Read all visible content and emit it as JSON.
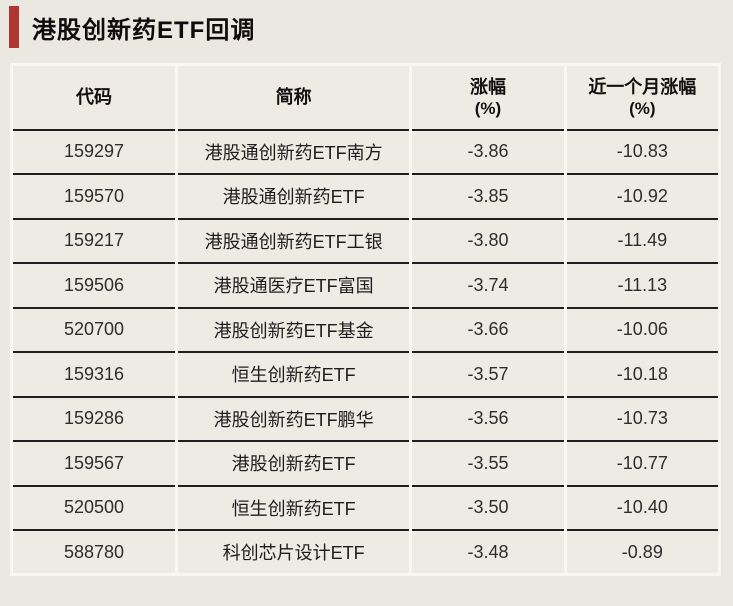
{
  "page": {
    "title": "港股创新药ETF回调",
    "accent_color": "#b23531",
    "background_color": "#ebe8e2"
  },
  "table": {
    "headers": [
      {
        "label": "代码",
        "sub": ""
      },
      {
        "label": "简称",
        "sub": ""
      },
      {
        "label": "涨幅",
        "sub": "(%)"
      },
      {
        "label": "近一个月涨幅",
        "sub": "(%)"
      }
    ],
    "rows": [
      [
        "159297",
        "港股通创新药ETF南方",
        "-3.86",
        "-10.83"
      ],
      [
        "159570",
        "港股通创新药ETF",
        "-3.85",
        "-10.92"
      ],
      [
        "159217",
        "港股通创新药ETF工银",
        "-3.80",
        "-11.49"
      ],
      [
        "159506",
        "港股通医疗ETF富国",
        "-3.74",
        "-11.13"
      ],
      [
        "520700",
        "港股创新药ETF基金",
        "-3.66",
        "-10.06"
      ],
      [
        "159316",
        "恒生创新药ETF",
        "-3.57",
        "-10.18"
      ],
      [
        "159286",
        "港股创新药ETF鹏华",
        "-3.56",
        "-10.73"
      ],
      [
        "159567",
        "港股创新药ETF",
        "-3.55",
        "-10.77"
      ],
      [
        "520500",
        "恒生创新药ETF",
        "-3.50",
        "-10.40"
      ],
      [
        "588780",
        "科创芯片设计ETF",
        "-3.48",
        "-0.89"
      ]
    ]
  },
  "chart_data": {
    "type": "table",
    "title": "港股创新药ETF回调",
    "columns": [
      "代码",
      "简称",
      "涨幅(%)",
      "近一个月涨幅(%)"
    ],
    "rows": [
      [
        "159297",
        "港股通创新药ETF南方",
        -3.86,
        -10.83
      ],
      [
        "159570",
        "港股通创新药ETF",
        -3.85,
        -10.92
      ],
      [
        "159217",
        "港股通创新药ETF工银",
        -3.8,
        -11.49
      ],
      [
        "159506",
        "港股通医疗ETF富国",
        -3.74,
        -11.13
      ],
      [
        "520700",
        "港股创新药ETF基金",
        -3.66,
        -10.06
      ],
      [
        "159316",
        "恒生创新药ETF",
        -3.57,
        -10.18
      ],
      [
        "159286",
        "港股创新药ETF鹏华",
        -3.56,
        -10.73
      ],
      [
        "159567",
        "港股创新药ETF",
        -3.55,
        -10.77
      ],
      [
        "520500",
        "恒生创新药ETF",
        -3.5,
        -10.4
      ],
      [
        "588780",
        "科创芯片设计ETF",
        -3.48,
        -0.89
      ]
    ]
  }
}
